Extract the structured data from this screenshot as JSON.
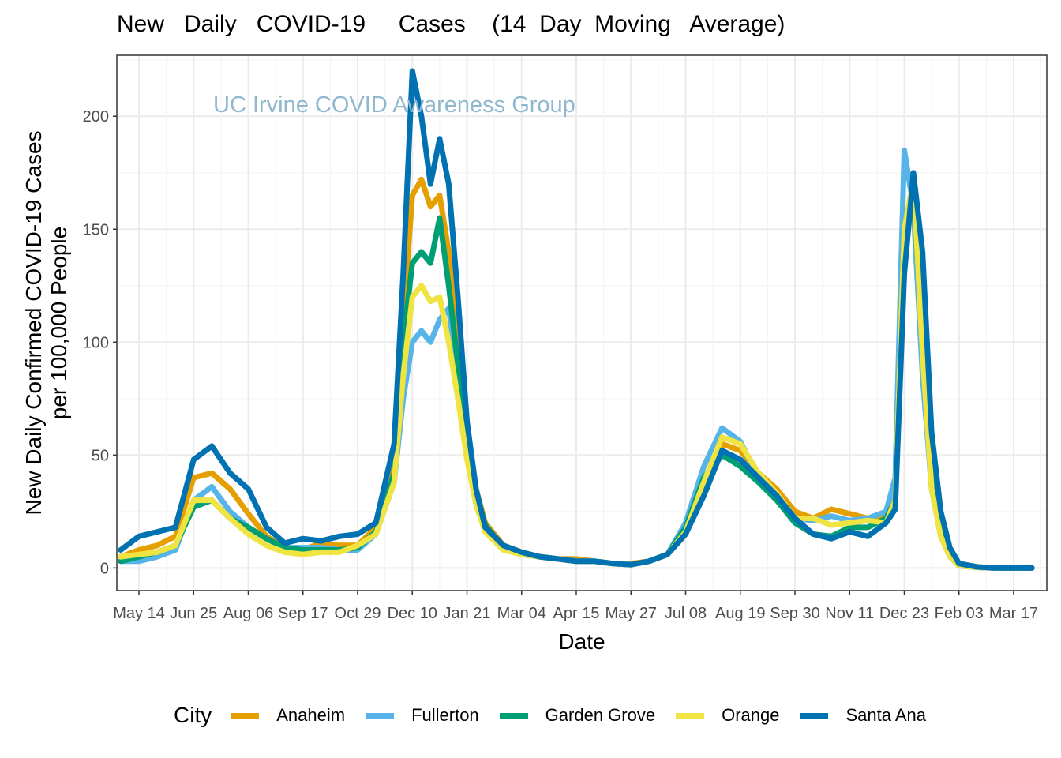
{
  "chart_data": {
    "type": "line",
    "title": "New   Daily   COVID-19     Cases    (14  Day  Moving   Average)",
    "watermark": "UC Irvine COVID Awareness Group",
    "xlabel": "Date",
    "ylabel_line1": "New Daily Confirmed COVID-19 Cases",
    "ylabel_line2": "per 100,000 People",
    "ylim": [
      -10,
      227
    ],
    "y_ticks": [
      0,
      50,
      100,
      150,
      200
    ],
    "grid": true,
    "legend_title": "City",
    "legend_position": "bottom",
    "x_ticks": [
      "May 14",
      "Jun 25",
      "Aug 06",
      "Sep 17",
      "Oct 29",
      "Dec 10",
      "Jan 21",
      "Mar 04",
      "Apr 15",
      "May 27",
      "Jul 08",
      "Aug 19",
      "Sep 30",
      "Nov 11",
      "Dec 23",
      "Feb 03",
      "Mar 17"
    ],
    "x": [
      "Apr 30",
      "May 14",
      "May 28",
      "Jun 11",
      "Jun 25",
      "Jul 09",
      "Jul 23",
      "Aug 06",
      "Aug 20",
      "Sep 03",
      "Sep 17",
      "Oct 01",
      "Oct 15",
      "Oct 29",
      "Nov 12",
      "Nov 26",
      "Dec 03",
      "Dec 10",
      "Dec 17",
      "Dec 24",
      "Dec 31",
      "Jan 07",
      "Jan 14",
      "Jan 21",
      "Jan 28",
      "Feb 04",
      "Feb 18",
      "Mar 04",
      "Mar 18",
      "Apr 01",
      "Apr 15",
      "Apr 29",
      "May 13",
      "May 27",
      "Jun 10",
      "Jun 24",
      "Jul 08",
      "Jul 22",
      "Aug 05",
      "Aug 19",
      "Sep 02",
      "Sep 16",
      "Sep 30",
      "Oct 14",
      "Oct 28",
      "Nov 11",
      "Nov 25",
      "Dec 09",
      "Dec 16",
      "Dec 23",
      "Dec 30",
      "Jan 06",
      "Jan 13",
      "Jan 20",
      "Jan 27",
      "Feb 03",
      "Feb 17",
      "Mar 03",
      "Mar 17",
      "Mar 31"
    ],
    "series": [
      {
        "name": "Anaheim",
        "color": "#E69F00",
        "values": [
          5,
          8,
          10,
          14,
          40,
          42,
          35,
          24,
          14,
          9,
          8,
          11,
          10,
          10,
          18,
          50,
          110,
          165,
          172,
          160,
          165,
          140,
          100,
          60,
          35,
          20,
          10,
          7,
          5,
          4,
          4,
          3,
          2,
          2,
          3,
          6,
          15,
          35,
          55,
          52,
          42,
          35,
          25,
          22,
          26,
          24,
          22,
          23,
          32,
          140,
          170,
          120,
          50,
          20,
          8,
          2,
          0.5,
          0,
          0,
          0
        ]
      },
      {
        "name": "Fullerton",
        "color": "#56B4E9",
        "values": [
          3,
          3,
          5,
          8,
          30,
          36,
          25,
          18,
          13,
          9,
          9,
          9,
          8,
          8,
          15,
          38,
          75,
          100,
          105,
          100,
          110,
          115,
          85,
          50,
          30,
          17,
          9,
          6,
          5,
          4,
          3,
          3,
          2,
          1.5,
          3,
          6,
          20,
          45,
          62,
          56,
          40,
          32,
          22,
          21,
          23,
          21,
          22,
          25,
          40,
          185,
          160,
          85,
          35,
          14,
          5,
          1,
          0.3,
          0,
          0,
          0
        ]
      },
      {
        "name": "Garden Grove",
        "color": "#009E73",
        "values": [
          3,
          5,
          7,
          10,
          27,
          30,
          22,
          18,
          13,
          9,
          8,
          8,
          8,
          9,
          16,
          42,
          100,
          135,
          140,
          135,
          155,
          125,
          90,
          55,
          33,
          19,
          9,
          6,
          5,
          4,
          3,
          3,
          2,
          1.5,
          3,
          6,
          18,
          40,
          50,
          45,
          38,
          30,
          20,
          15,
          14,
          18,
          18,
          22,
          30,
          150,
          165,
          100,
          40,
          16,
          6,
          1,
          0.3,
          0,
          0,
          0
        ]
      },
      {
        "name": "Orange",
        "color": "#F0E442",
        "values": [
          5,
          6,
          7,
          10,
          30,
          30,
          22,
          15,
          10,
          7,
          6,
          7,
          7,
          10,
          15,
          38,
          85,
          120,
          125,
          118,
          120,
          100,
          75,
          48,
          28,
          16,
          8,
          6,
          5,
          4,
          3,
          3,
          2,
          1.5,
          3,
          6,
          16,
          38,
          58,
          55,
          42,
          33,
          22,
          22,
          19,
          20,
          21,
          20,
          30,
          150,
          172,
          95,
          35,
          14,
          5,
          1,
          0.3,
          0,
          0,
          0
        ]
      },
      {
        "name": "Santa Ana",
        "color": "#0072B2",
        "values": [
          8,
          14,
          16,
          18,
          48,
          54,
          42,
          35,
          18,
          11,
          13,
          12,
          14,
          15,
          20,
          55,
          130,
          220,
          200,
          170,
          190,
          170,
          120,
          65,
          35,
          18,
          10,
          7,
          5,
          4,
          3,
          3,
          2,
          1.5,
          3,
          6,
          15,
          32,
          52,
          48,
          40,
          32,
          22,
          15,
          13,
          16,
          14,
          20,
          26,
          130,
          175,
          140,
          60,
          25,
          9,
          2,
          0.5,
          0,
          0,
          0
        ]
      }
    ]
  }
}
